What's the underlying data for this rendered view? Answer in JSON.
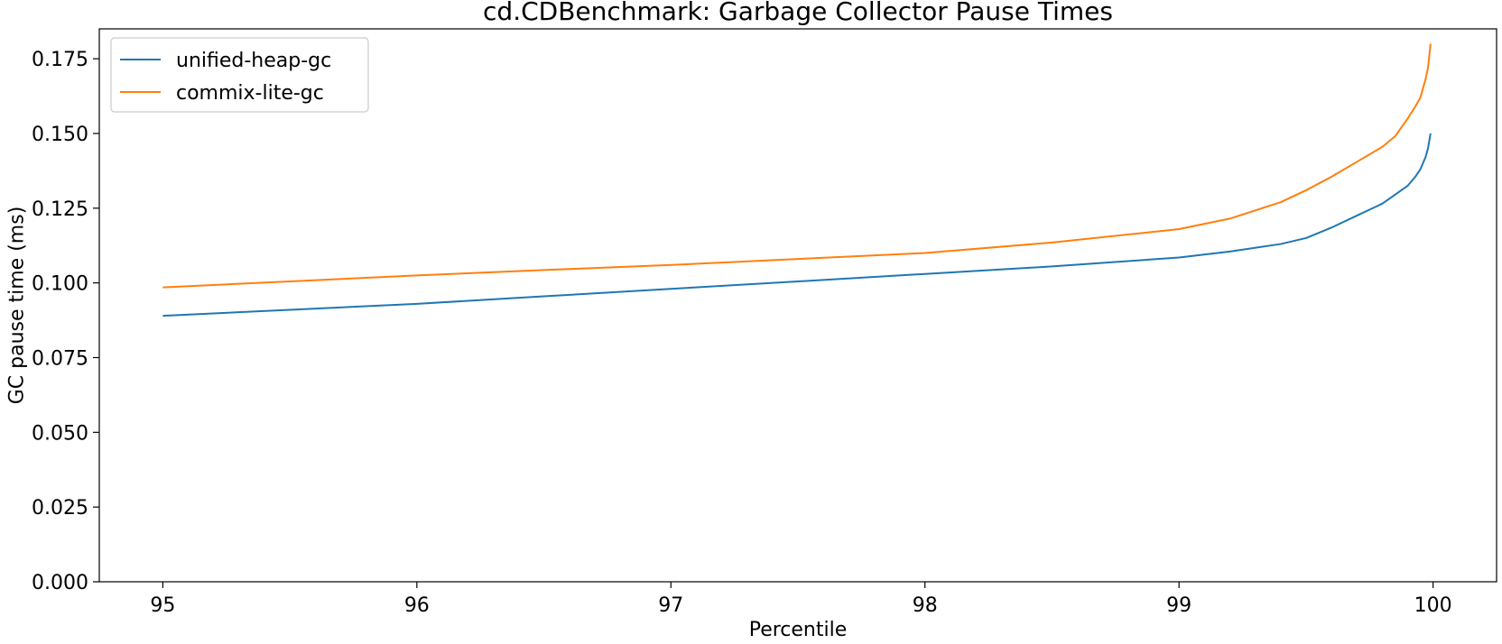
{
  "chart_data": {
    "type": "line",
    "title": "cd.CDBenchmark: Garbage Collector Pause Times",
    "xlabel": "Percentile",
    "ylabel": "GC pause time (ms)",
    "xlim": [
      94.75,
      100.25
    ],
    "ylim": [
      0.0,
      0.185
    ],
    "xticks": [
      95,
      96,
      97,
      98,
      99,
      100
    ],
    "xtick_labels": [
      "95",
      "96",
      "97",
      "98",
      "99",
      "100"
    ],
    "yticks": [
      0.0,
      0.025,
      0.05,
      0.075,
      0.1,
      0.125,
      0.15,
      0.175
    ],
    "ytick_labels": [
      "0.000",
      "0.025",
      "0.050",
      "0.075",
      "0.100",
      "0.125",
      "0.150",
      "0.175"
    ],
    "grid": false,
    "legend_position": "top-left",
    "series": [
      {
        "name": "unified-heap-gc",
        "color": "#1f77b4",
        "x": [
          95.0,
          95.5,
          96.0,
          96.5,
          97.0,
          97.5,
          98.0,
          98.5,
          99.0,
          99.2,
          99.4,
          99.5,
          99.6,
          99.7,
          99.8,
          99.85,
          99.9,
          99.93,
          99.95,
          99.97,
          99.98,
          99.99
        ],
        "y": [
          0.089,
          0.091,
          0.093,
          0.0955,
          0.098,
          0.1005,
          0.103,
          0.1055,
          0.1085,
          0.1105,
          0.113,
          0.115,
          0.1185,
          0.1225,
          0.1265,
          0.1295,
          0.1325,
          0.1355,
          0.138,
          0.142,
          0.145,
          0.15
        ]
      },
      {
        "name": "commix-lite-gc",
        "color": "#ff7f0e",
        "x": [
          95.0,
          95.5,
          96.0,
          96.5,
          97.0,
          97.5,
          98.0,
          98.5,
          99.0,
          99.2,
          99.4,
          99.5,
          99.6,
          99.7,
          99.8,
          99.85,
          99.9,
          99.93,
          99.95,
          99.96,
          99.97,
          99.98,
          99.99
        ],
        "y": [
          0.0985,
          0.1005,
          0.1025,
          0.1043,
          0.106,
          0.108,
          0.11,
          0.1135,
          0.118,
          0.1215,
          0.127,
          0.131,
          0.1355,
          0.1405,
          0.1455,
          0.149,
          0.155,
          0.159,
          0.162,
          0.165,
          0.168,
          0.172,
          0.18
        ]
      }
    ]
  }
}
